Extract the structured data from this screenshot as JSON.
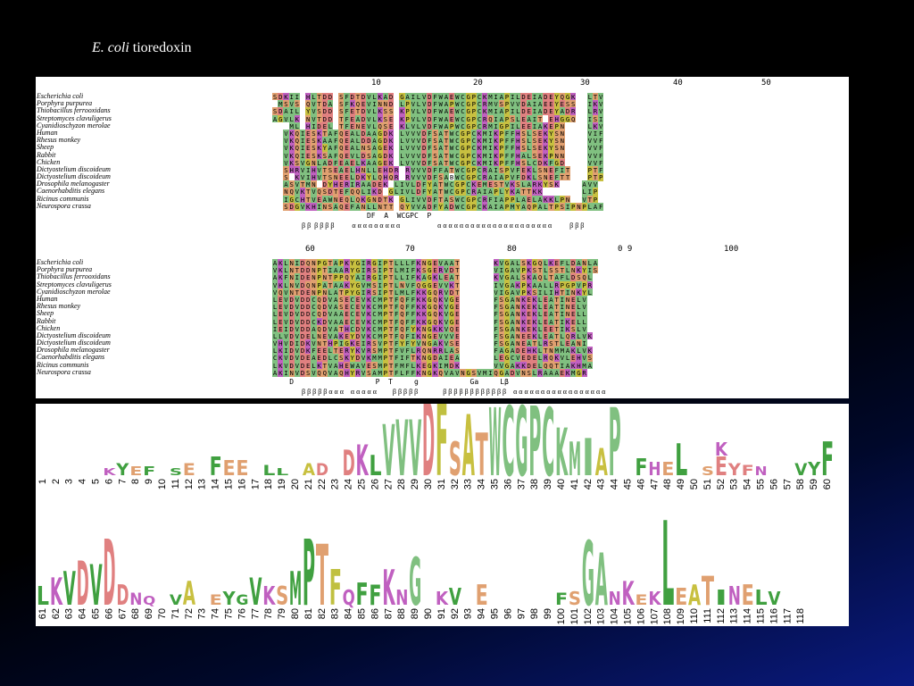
{
  "title": {
    "italic": "E. coli",
    "rest": " tioredoxin"
  },
  "alignment": {
    "species": [
      "Escherichia coli",
      "Porphyra purpurea",
      "Thiobacillus ferrooxidans",
      "Streptomyces clavuligerus",
      "Cyanidioschyzon merolae",
      "Human",
      "Rhesus monkey",
      "Sheep",
      "Rabbit",
      "Chicken",
      "Dictyostelium discoideum",
      "Dictyostelium discoideum",
      "Drosophila melanogaster",
      "Caenorhabditis elegans",
      "Ricinus communis",
      "Neurospora crassa"
    ],
    "block1": {
      "ticks": [
        "10",
        "20",
        "30",
        "40",
        "50"
      ],
      "seqs": [
        "SDKII-HLTDD-SFDTDVLKAD-GAILVDFWAEWCGPCKMIAPILDEIADEYQGK--LTV",
        "-MSVS-QVTDA-SFKQEVINND-LPVLVDFWAPWCGPCRMVSPVVDAIAEEYESS--IKV",
        "SDAIL-YVSDD-SFETDVLKSS-KPVLVDFWAEWCGPCKMIAPILDEIADEYADR--LRV",
        "AGVLK-NVTDD-TFEADVLKSE-KPVLVDFWAEWCGPCRQIAPSLEAIT-EHGGQ--ISI",
        "---ML-HIDEL-TFENEVLQSE-KLVLVDFWAPWCGPCRMIGPILEEIAKEPN----LKV",
        "--VKQIESKTAFQEALDAAGDK-LVVVDFSATWCGPCKMIKPFFHSLSEKYSN----VIF",
        "--VKQIESKAAFQEALDDAGDK-LVVVDFSATWCGPCKMIKPFFHSLSEKYSN----VVF",
        "--VKQIESKYAFQEALNSAGEK-LVVVDFSATWCGPCKMIKPFFHSLSEKYSN----VVF",
        "--VKQIESKSAFQEVLDSAGDK-LVVVDFSATWCGPCKMIKPFFHALSEKPNN----VVF",
        "--VKSVGNLADFEAELKAAGEK-LVVVDFSATWCGPCKMIKPFFHSLCDKFGD----VVF",
        "--SHRVIHVTSEAELHNLLEHDR-RVVVDFFATWCGPCRAISPVFEKLSNEFIT---PTF",
        "--S-KVIHVTSNEELDKYLQHQR-RVVVDFSABWCGPCRAIAPVFDKLSNEFTT---PTP",
        "--ASVTMN-DYHERIRAADEK-LIVLDFYATWCGPCKEMESTVKSLARKYSK----AVV",
        "--NQVKTVQSDTEFQQLIKD-GLIVLDFYATWCGPCRAIAPLYKATTKK-------LIP",
        "--IGCHTVEAWNEQLQKGNDTK-GLIVVDFTASWCGPCRFIAPPLAELAKKLPN--VTP",
        "--SDGVKHINSAQEFANLLNTT-QYVVADFYADWCGPCKAIAPMYAQPALTPSIPNPLAF"
      ],
      "consensus": "                      DF  A  WCGPC  P",
      "secondary": "β β  β β β β          α α α α α α α α α                     α α α α α α α α α α α α α α α α α α α α α          β β β"
    },
    "block2": {
      "ticks": [
        "60",
        "70",
        "80",
        "0 9",
        "100"
      ],
      "seqs": [
        "AKLNIDQNPGTAPKYGIRGIPTLLLFKNGEVAAT------KVGALSKGQLKEFLDANLA",
        "VKLNTDDNPTIAARYGIRSIPTLMIFKSGERVDT------VIGAVPKSTLSSTLNKYIS",
        "AKFNIDENPNTPPQYAIRGIPTLLIFKAGKLEAT------KVGALSKAQLTAFLDSQL-",
        "VKLNVDQNPATAAKYGVMSIPTLNVFQGGEVVKT------IVGAKPKAALLRPGPVPR-",
        "VQVNTDENPNLATPYGIRSIPTLMLFKKGQRVDT------VIGAVPKSILIHTINKYL-",
        "LEVDVDDCQDVASECEVKCMPTFQFFKKGQKVGE------FSGANKEKLEATINELV--",
        "LEVDVDDCQDVASECEVKCMPTFQFFKKGQKVGE------FSGANKEKLEATINELV--",
        "LEVDVDDCQDVAAECEVKCMPTFQFFKKGQKVGE------FSGANKEKLEATINELL--",
        "LEVDVDDCKDVAAECEVKCMPTFQFFKKGQKVGE------FSGANKEKLEATIKELL--",
        "IEIDVDDAQDVATHCDVKCMPTFQFYKNGKKVQE------FSGANKEKLEETIKSLV--",
        "LLVDVDELNEVAKEYDVKCMPTFQFIKNGEVVVE------FSGANEEKLEATLQRLVK-",
        "VHVDIDKVNTHPIGKEIRSVPTFYFYVNGAKVSE------FSGANEATLRSTLEANI--",
        "LKIDVDKFEELTERYKVRSMPTFVFLRQNRRLAS------FAGADEHKLTNMMAKLVK-",
        "CKVDVDEAEDLCSKYDVKMMPTFIFTKNGDAIEA------LEGCVEDELRQKVLEHVS-",
        "LKVDVDELKTVAHEWAVESMPTFMFLKEGKIMDK------VVGAKKDELQQTIAKHMA-",
        "AKINVDSVQQVAQHYRVSAMPTFLFFKNGKQVAVNGSVMIQGADVNSLRAAAEKMGR--"
      ],
      "consensus": "    D                   P  T     g            Ga     Lβ",
      "secondary": "β β β β β α α α    α α α α α         β β β β β              β β β β β β β β β β β β    α α α α α α α α α α α α α α α α α"
    },
    "logo": {
      "row1_positions": [
        "1",
        "2",
        "3",
        "4",
        "5",
        "6",
        "7",
        "8",
        "9",
        "10",
        "11",
        "12",
        "13",
        "14",
        "15",
        "16",
        "17",
        "18",
        "19",
        "20",
        "21",
        "22",
        "23",
        "24",
        "25",
        "26",
        "27",
        "28",
        "29",
        "30",
        "31",
        "32",
        "33",
        "34",
        "35",
        "36",
        "37",
        "38",
        "39",
        "40",
        "41",
        "42",
        "43",
        "44",
        "45",
        "46",
        "47",
        "48",
        "49",
        "50",
        "51",
        "52",
        "53",
        "54",
        "55",
        "56",
        "57",
        "58",
        "59",
        "60"
      ],
      "row1_letters": [
        {
          "p": "6",
          "l": "K",
          "c": "#c060c0",
          "h": 8
        },
        {
          "p": "7",
          "l": "Y",
          "c": "#40a040",
          "h": 14
        },
        {
          "p": "8",
          "l": "E",
          "c": "#e0a070",
          "h": 10
        },
        {
          "p": "9",
          "l": "F",
          "c": "#40a040",
          "h": 10
        },
        {
          "p": "11",
          "l": "S",
          "c": "#40a040",
          "h": 8
        },
        {
          "p": "12",
          "l": "E",
          "c": "#e0a070",
          "h": 14
        },
        {
          "p": "14",
          "l": "F",
          "c": "#40a040",
          "h": 22
        },
        {
          "p": "15",
          "l": "E",
          "c": "#e0a070",
          "h": 18
        },
        {
          "p": "16",
          "l": "E",
          "c": "#e0a070",
          "h": 18
        },
        {
          "p": "18",
          "l": "L",
          "c": "#40a040",
          "h": 12
        },
        {
          "p": "19",
          "l": "L",
          "c": "#40a040",
          "h": 8
        },
        {
          "p": "21",
          "l": "A",
          "c": "#c8c040",
          "h": 14
        },
        {
          "p": "22",
          "l": "D",
          "c": "#e08080",
          "h": 14
        },
        {
          "p": "24",
          "l": "D",
          "c": "#e08080",
          "h": 30
        },
        {
          "p": "25",
          "l": "K",
          "c": "#c060c0",
          "h": 36
        },
        {
          "p": "26",
          "l": "L",
          "c": "#40a040",
          "h": 24
        },
        {
          "p": "27",
          "l": "V",
          "c": "#80c080",
          "h": 60
        },
        {
          "p": "28",
          "l": "V",
          "c": "#80c080",
          "h": 66
        },
        {
          "p": "29",
          "l": "V",
          "c": "#80c080",
          "h": 66
        },
        {
          "p": "30",
          "l": "D",
          "c": "#e08080",
          "h": 88
        },
        {
          "p": "31",
          "l": "F",
          "c": "#c0c040",
          "h": 88
        },
        {
          "p": "32",
          "l": "S",
          "c": "#e0a070",
          "h": 40
        },
        {
          "p": "33",
          "l": "A",
          "c": "#c8c040",
          "h": 72
        },
        {
          "p": "34",
          "l": "T",
          "c": "#e0a070",
          "h": 50
        },
        {
          "p": "35",
          "l": "W",
          "c": "#80c080",
          "h": 80
        },
        {
          "p": "36",
          "l": "C",
          "c": "#80c080",
          "h": 82
        },
        {
          "p": "37",
          "l": "G",
          "c": "#80c080",
          "h": 82
        },
        {
          "p": "38",
          "l": "P",
          "c": "#80c080",
          "h": 82
        },
        {
          "p": "39",
          "l": "C",
          "c": "#80c080",
          "h": 80
        },
        {
          "p": "40",
          "l": "K",
          "c": "#80c080",
          "h": 56
        },
        {
          "p": "41",
          "l": "M",
          "c": "#80c080",
          "h": 40
        },
        {
          "p": "42",
          "l": "I",
          "c": "#80c080",
          "h": 44
        },
        {
          "p": "43",
          "l": "A",
          "c": "#c8c040",
          "h": 32
        },
        {
          "p": "44",
          "l": "P",
          "c": "#80c080",
          "h": 80
        },
        {
          "p": "46",
          "l": "F",
          "c": "#40a040",
          "h": 20
        },
        {
          "p": "47",
          "l": "H",
          "c": "#c060c0",
          "h": 16
        },
        {
          "p": "48",
          "l": "E",
          "c": "#e0a070",
          "h": 16
        },
        {
          "p": "49",
          "l": "L",
          "c": "#40a040",
          "h": 38
        },
        {
          "p": "51",
          "l": "S",
          "c": "#e0a070",
          "h": 10
        },
        {
          "p": "52",
          "l": "E",
          "c": "#e08080",
          "h": 22
        },
        {
          "p": "52",
          "l": "K",
          "c": "#c060c0",
          "h": 16
        },
        {
          "p": "53",
          "l": "Y",
          "c": "#e08080",
          "h": 14
        },
        {
          "p": "54",
          "l": "F",
          "c": "#e08080",
          "h": 12
        },
        {
          "p": "55",
          "l": "N",
          "c": "#c060c0",
          "h": 10
        },
        {
          "p": "58",
          "l": "V",
          "c": "#40a040",
          "h": 14
        },
        {
          "p": "59",
          "l": "Y",
          "c": "#40a040",
          "h": 16
        },
        {
          "p": "60",
          "l": "F",
          "c": "#40a040",
          "h": 40
        }
      ],
      "row2_positions": [
        "61",
        "62",
        "63",
        "64",
        "65",
        "66",
        "67",
        "68",
        "69",
        "70",
        "71",
        "72",
        "73",
        "74",
        "75",
        "76",
        "77",
        "78",
        "79",
        "80",
        "81",
        "82",
        "83",
        "84",
        "85",
        "86",
        "87",
        "88",
        "89",
        "90",
        "91",
        "92",
        "93",
        "94",
        "95",
        "96",
        "97",
        "98",
        "99",
        "100",
        "101",
        "102",
        "103",
        "104",
        "105",
        "106",
        "107",
        "108",
        "109",
        "110",
        "111",
        "112",
        "113",
        "114",
        "115",
        "116",
        "117",
        "118"
      ],
      "row2_letters": [
        {
          "p": "61",
          "l": "L",
          "c": "#40a040",
          "h": 22
        },
        {
          "p": "62",
          "l": "K",
          "c": "#c060c0",
          "h": 32
        },
        {
          "p": "63",
          "l": "V",
          "c": "#40a040",
          "h": 40
        },
        {
          "p": "64",
          "l": "D",
          "c": "#e08080",
          "h": 52
        },
        {
          "p": "65",
          "l": "V",
          "c": "#40a040",
          "h": 48
        },
        {
          "p": "66",
          "l": "D",
          "c": "#e08080",
          "h": 78
        },
        {
          "p": "67",
          "l": "D",
          "c": "#e08080",
          "h": 24
        },
        {
          "p": "68",
          "l": "N",
          "c": "#c060c0",
          "h": 14
        },
        {
          "p": "69",
          "l": "Q",
          "c": "#c060c0",
          "h": 10
        },
        {
          "p": "71",
          "l": "V",
          "c": "#40a040",
          "h": 12
        },
        {
          "p": "72",
          "l": "A",
          "c": "#c8c040",
          "h": 28
        },
        {
          "p": "74",
          "l": "E",
          "c": "#e0a070",
          "h": 12
        },
        {
          "p": "75",
          "l": "Y",
          "c": "#40a040",
          "h": 16
        },
        {
          "p": "76",
          "l": "G",
          "c": "#40a040",
          "h": 12
        },
        {
          "p": "77",
          "l": "V",
          "c": "#40a040",
          "h": 32
        },
        {
          "p": "78",
          "l": "K",
          "c": "#c060c0",
          "h": 22
        },
        {
          "p": "79",
          "l": "S",
          "c": "#e0a070",
          "h": 22
        },
        {
          "p": "80",
          "l": "M",
          "c": "#40a040",
          "h": 40
        },
        {
          "p": "81",
          "l": "P",
          "c": "#40a040",
          "h": 78
        },
        {
          "p": "82",
          "l": "T",
          "c": "#e0a070",
          "h": 72
        },
        {
          "p": "83",
          "l": "F",
          "c": "#c0c040",
          "h": 42
        },
        {
          "p": "84",
          "l": "Q",
          "c": "#c060c0",
          "h": 18
        },
        {
          "p": "85",
          "l": "F",
          "c": "#40a040",
          "h": 26
        },
        {
          "p": "86",
          "l": "F",
          "c": "#40a040",
          "h": 24
        },
        {
          "p": "87",
          "l": "K",
          "c": "#c060c0",
          "h": 42
        },
        {
          "p": "88",
          "l": "N",
          "c": "#c060c0",
          "h": 18
        },
        {
          "p": "89",
          "l": "G",
          "c": "#80c080",
          "h": 56
        },
        {
          "p": "91",
          "l": "K",
          "c": "#c060c0",
          "h": 16
        },
        {
          "p": "92",
          "l": "V",
          "c": "#40a040",
          "h": 20
        },
        {
          "p": "94",
          "l": "E",
          "c": "#e0a070",
          "h": 24
        },
        {
          "p": "100",
          "l": "F",
          "c": "#40a040",
          "h": 14
        },
        {
          "p": "101",
          "l": "S",
          "c": "#e0a070",
          "h": 16
        },
        {
          "p": "102",
          "l": "G",
          "c": "#80c080",
          "h": 76
        },
        {
          "p": "103",
          "l": "A",
          "c": "#80c080",
          "h": 62
        },
        {
          "p": "104",
          "l": "N",
          "c": "#c060c0",
          "h": 16
        },
        {
          "p": "105",
          "l": "K",
          "c": "#c060c0",
          "h": 28
        },
        {
          "p": "106",
          "l": "E",
          "c": "#e0a070",
          "h": 12
        },
        {
          "p": "107",
          "l": "K",
          "c": "#c060c0",
          "h": 16
        },
        {
          "p": "108",
          "l": "L",
          "c": "#40a040",
          "h": 100
        },
        {
          "p": "109",
          "l": "E",
          "c": "#e0a070",
          "h": 20
        },
        {
          "p": "110",
          "l": "A",
          "c": "#c8c040",
          "h": 24
        },
        {
          "p": "111",
          "l": "T",
          "c": "#e0a070",
          "h": 34
        },
        {
          "p": "112",
          "l": "I",
          "c": "#40a040",
          "h": 18
        },
        {
          "p": "113",
          "l": "N",
          "c": "#c060c0",
          "h": 22
        },
        {
          "p": "114",
          "l": "E",
          "c": "#e0a070",
          "h": 24
        },
        {
          "p": "115",
          "l": "L",
          "c": "#40a040",
          "h": 18
        },
        {
          "p": "116",
          "l": "V",
          "c": "#40a040",
          "h": 16
        }
      ]
    },
    "colors": {
      "hydrophobic": "#80c080",
      "acidic": "#e08080",
      "basic": "#c060c0",
      "polar": "#e0a070",
      "special": "#c8c040",
      "gap": "#ffffff"
    }
  }
}
